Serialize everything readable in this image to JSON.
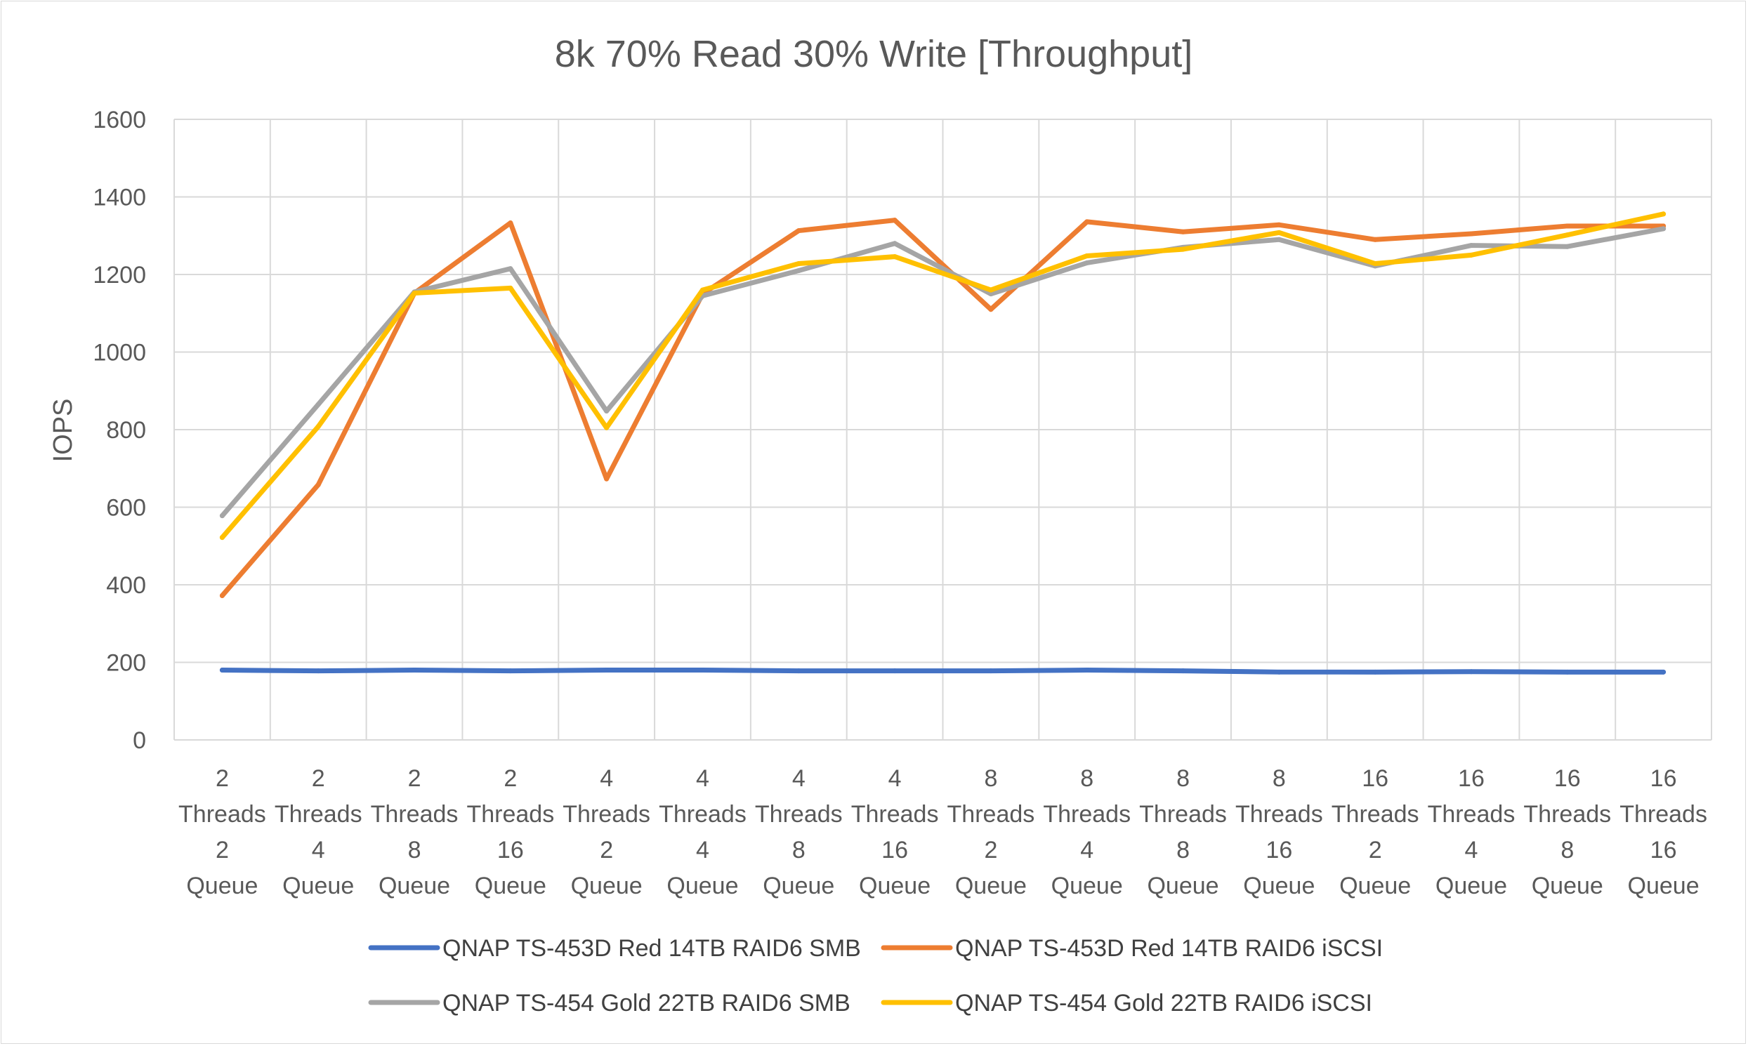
{
  "chart_data": {
    "type": "line",
    "title": "8k 70% Read 30% Write [Throughput]",
    "xlabel": "",
    "ylabel": "IOPS",
    "ylim": [
      0,
      1600
    ],
    "yticks": [
      0,
      200,
      400,
      600,
      800,
      1000,
      1200,
      1400,
      1600
    ],
    "grid": true,
    "legend_position": "bottom",
    "categories": [
      [
        "2",
        "Threads",
        "2",
        "Queue"
      ],
      [
        "2",
        "Threads",
        "4",
        "Queue"
      ],
      [
        "2",
        "Threads",
        "8",
        "Queue"
      ],
      [
        "2",
        "Threads",
        "16",
        "Queue"
      ],
      [
        "4",
        "Threads",
        "2",
        "Queue"
      ],
      [
        "4",
        "Threads",
        "4",
        "Queue"
      ],
      [
        "4",
        "Threads",
        "8",
        "Queue"
      ],
      [
        "4",
        "Threads",
        "16",
        "Queue"
      ],
      [
        "8",
        "Threads",
        "2",
        "Queue"
      ],
      [
        "8",
        "Threads",
        "4",
        "Queue"
      ],
      [
        "8",
        "Threads",
        "8",
        "Queue"
      ],
      [
        "8",
        "Threads",
        "16",
        "Queue"
      ],
      [
        "16",
        "Threads",
        "2",
        "Queue"
      ],
      [
        "16",
        "Threads",
        "4",
        "Queue"
      ],
      [
        "16",
        "Threads",
        "8",
        "Queue"
      ],
      [
        "16",
        "Threads",
        "16",
        "Queue"
      ]
    ],
    "series": [
      {
        "name": "QNAP TS-453D Red 14TB RAID6 SMB",
        "color": "#4472c4",
        "values": [
          180,
          178,
          180,
          178,
          180,
          180,
          178,
          178,
          178,
          180,
          178,
          175,
          175,
          176,
          175,
          175
        ]
      },
      {
        "name": "QNAP TS-453D Red 14TB RAID6 iSCSI",
        "color": "#ed7d31",
        "values": [
          372,
          658,
          1152,
          1333,
          673,
          1150,
          1313,
          1340,
          1110,
          1336,
          1310,
          1328,
          1290,
          1305,
          1325,
          1325
        ]
      },
      {
        "name": "QNAP TS-454 Gold 22TB RAID6 SMB",
        "color": "#a5a5a5",
        "values": [
          578,
          865,
          1155,
          1215,
          848,
          1145,
          1210,
          1280,
          1150,
          1230,
          1270,
          1290,
          1222,
          1275,
          1272,
          1318
        ]
      },
      {
        "name": "QNAP TS-454 Gold 22TB RAID6 iSCSI",
        "color": "#ffc000",
        "values": [
          522,
          808,
          1152,
          1165,
          805,
          1160,
          1228,
          1246,
          1160,
          1248,
          1265,
          1308,
          1228,
          1250,
          1302,
          1356
        ]
      }
    ]
  }
}
